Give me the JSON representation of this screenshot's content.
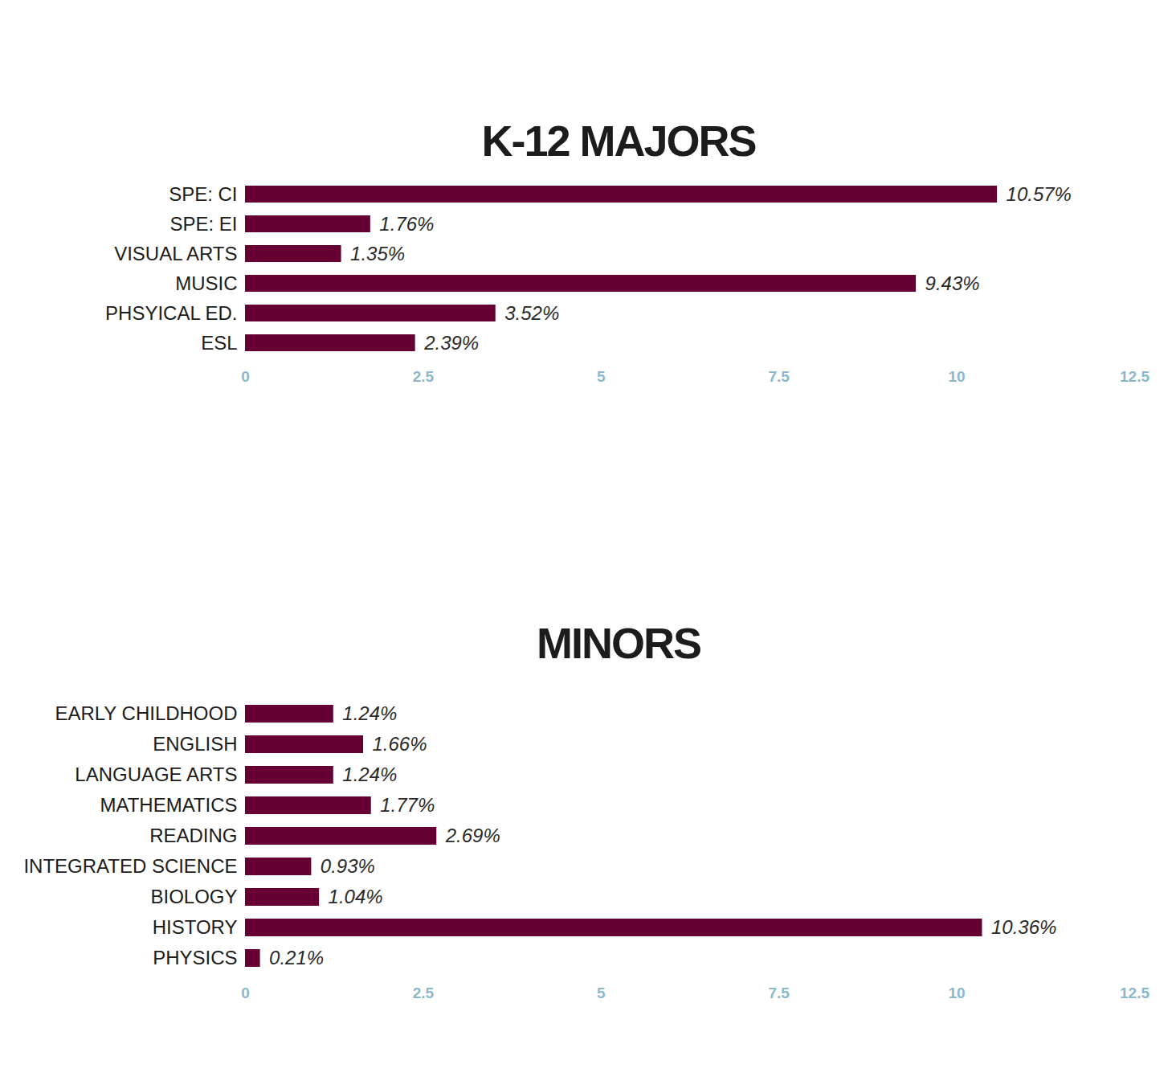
{
  "chart_data": [
    {
      "type": "bar",
      "title": "K-12 MAJORS",
      "orientation": "horizontal",
      "categories": [
        "SPE: CI",
        "SPE: EI",
        "VISUAL ARTS",
        "MUSIC",
        "PHSYICAL ED.",
        "ESL"
      ],
      "values": [
        10.57,
        1.76,
        1.35,
        9.43,
        3.52,
        2.39
      ],
      "value_labels": [
        "10.57%",
        "1.76%",
        "1.35%",
        "9.43%",
        "3.52%",
        "2.39%"
      ],
      "color": "#660033",
      "xlim": [
        0,
        12.5
      ],
      "xticks": [
        0,
        2.5,
        5,
        7.5,
        10,
        12.5
      ],
      "grid": true,
      "data_labels": true
    },
    {
      "type": "bar",
      "title": "MINORS",
      "orientation": "horizontal",
      "categories": [
        "EARLY CHILDHOOD",
        "ENGLISH",
        "LANGUAGE ARTS",
        "MATHEMATICS",
        "READING",
        "INTEGRATED SCIENCE",
        "BIOLOGY",
        "HISTORY",
        "PHYSICS"
      ],
      "values": [
        1.24,
        1.66,
        1.24,
        1.77,
        2.69,
        0.93,
        1.04,
        10.36,
        0.21
      ],
      "value_labels": [
        "1.24%",
        "1.66%",
        "1.24%",
        "1.77%",
        "2.69%",
        "0.93%",
        "1.04%",
        "10.36%",
        "0.21%"
      ],
      "color": "#660033",
      "xlim": [
        0,
        12.5
      ],
      "xticks": [
        0,
        2.5,
        5,
        7.5,
        10,
        12.5
      ],
      "grid": true,
      "data_labels": true
    }
  ]
}
